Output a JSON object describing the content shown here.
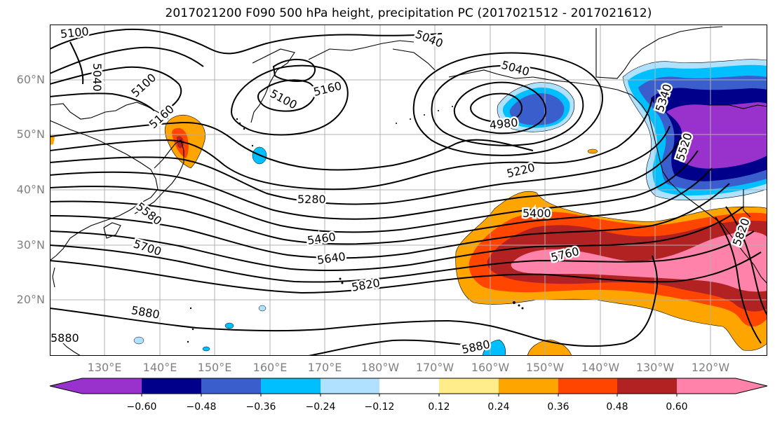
{
  "title": "2017021200 F090 500 hPa height, precipitation PC (2017021512 - 2017021612)",
  "lat_labels": [
    "60°N",
    "50°N",
    "40°N",
    "30°N",
    "20°N"
  ],
  "lon_labels": [
    "130°E",
    "140°E",
    "150°E",
    "160°E",
    "170°E",
    "180°W",
    "170°W",
    "160°W",
    "150°W",
    "140°W",
    "130°W",
    "120°W"
  ],
  "contour_labels": [
    "5100",
    "5040",
    "5100",
    "5160",
    "5100",
    "5040",
    "5040",
    "5160",
    "4980",
    "5220",
    "5280",
    "5400",
    "5460",
    "5640",
    "5700",
    "5760",
    "5820",
    "5880",
    "5880",
    "5580",
    "5820",
    "5520",
    "5340",
    "5880"
  ],
  "colorbar": {
    "tick_labels": [
      "−0.60",
      "−0.48",
      "−0.36",
      "−0.24",
      "−0.12",
      "0.12",
      "0.24",
      "0.36",
      "0.48",
      "0.60"
    ],
    "colors": [
      "#9932cc",
      "#00008b",
      "#3a5fcd",
      "#00bfff",
      "#b0e2ff",
      "#ffffff",
      "#ffec8b",
      "#ffa500",
      "#ff4500",
      "#b22222",
      "#ff82ab",
      "#ff82ab"
    ]
  },
  "palette": {
    "contour": "#000000",
    "grid": "#b0b0b0",
    "coast": "#000000",
    "neg1": "#b0e2ff",
    "neg2": "#00bfff",
    "neg3": "#3a5fcd",
    "neg4": "#00008b",
    "neg5": "#9932cc",
    "pos1": "#ffec8b",
    "pos2": "#ffa500",
    "pos3": "#ff4500",
    "pos4": "#b22222",
    "pos5": "#ff82ab"
  }
}
